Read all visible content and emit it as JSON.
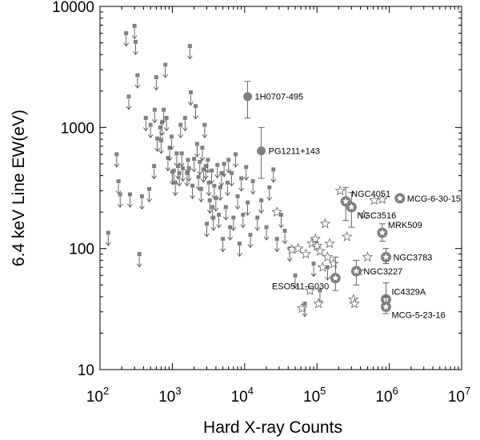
{
  "chart_data": {
    "type": "scatter",
    "title": "",
    "xlabel": "Hard X-ray Counts",
    "ylabel": "6.4 keV Line EW(eV)",
    "xscale": "log",
    "yscale": "log",
    "xlim": [
      100,
      10000000
    ],
    "ylim": [
      10,
      10000
    ],
    "grid": false,
    "x_ticks": [
      {
        "value": 100,
        "base": "10",
        "exp": "2"
      },
      {
        "value": 1000,
        "base": "10",
        "exp": "3"
      },
      {
        "value": 10000,
        "base": "10",
        "exp": "4"
      },
      {
        "value": 100000,
        "base": "10",
        "exp": "5"
      },
      {
        "value": 1000000,
        "base": "10",
        "exp": "6"
      },
      {
        "value": 10000000,
        "base": "10",
        "exp": "7"
      }
    ],
    "y_ticks": [
      {
        "value": 10,
        "label": "10"
      },
      {
        "value": 100,
        "label": "100"
      },
      {
        "value": 1000,
        "label": "1000"
      },
      {
        "value": 10000,
        "label": "10000"
      }
    ],
    "upper_limits": [
      [
        130,
        135
      ],
      [
        170,
        600
      ],
      [
        180,
        360
      ],
      [
        190,
        280
      ],
      [
        230,
        6000
      ],
      [
        250,
        1800
      ],
      [
        260,
        280
      ],
      [
        300,
        6900
      ],
      [
        310,
        5100
      ],
      [
        330,
        2700
      ],
      [
        350,
        90
      ],
      [
        380,
        270
      ],
      [
        430,
        1200
      ],
      [
        480,
        310
      ],
      [
        500,
        1050
      ],
      [
        560,
        480
      ],
      [
        570,
        1400
      ],
      [
        600,
        2600
      ],
      [
        620,
        810
      ],
      [
        680,
        1000
      ],
      [
        700,
        780
      ],
      [
        720,
        1100
      ],
      [
        760,
        1400
      ],
      [
        800,
        3300
      ],
      [
        830,
        1200
      ],
      [
        870,
        560
      ],
      [
        920,
        680
      ],
      [
        980,
        840
      ],
      [
        1000,
        430
      ],
      [
        1050,
        440
      ],
      [
        1100,
        350
      ],
      [
        1150,
        610
      ],
      [
        1200,
        480
      ],
      [
        1250,
        420
      ],
      [
        1300,
        1050
      ],
      [
        1350,
        610
      ],
      [
        1400,
        460
      ],
      [
        1500,
        1200
      ],
      [
        1600,
        420
      ],
      [
        1650,
        540
      ],
      [
        1700,
        460
      ],
      [
        1750,
        4700
      ],
      [
        1800,
        1950
      ],
      [
        1900,
        330
      ],
      [
        2000,
        550
      ],
      [
        2100,
        1500
      ],
      [
        2200,
        730
      ],
      [
        2300,
        390
      ],
      [
        2400,
        520
      ],
      [
        2500,
        310
      ],
      [
        2600,
        680
      ],
      [
        2700,
        450
      ],
      [
        2800,
        1050
      ],
      [
        2900,
        480
      ],
      [
        3000,
        160
      ],
      [
        3100,
        540
      ],
      [
        3200,
        350
      ],
      [
        3300,
        250
      ],
      [
        3500,
        440
      ],
      [
        3600,
        220
      ],
      [
        3700,
        180
      ],
      [
        3800,
        330
      ],
      [
        4000,
        260
      ],
      [
        4200,
        490
      ],
      [
        4400,
        190
      ],
      [
        4600,
        320
      ],
      [
        4800,
        420
      ],
      [
        5000,
        120
      ],
      [
        5200,
        500
      ],
      [
        5500,
        220
      ],
      [
        5800,
        350
      ],
      [
        6000,
        540
      ],
      [
        6300,
        150
      ],
      [
        6600,
        420
      ],
      [
        7000,
        180
      ],
      [
        7500,
        600
      ],
      [
        8000,
        270
      ],
      [
        8500,
        110
      ],
      [
        9000,
        380
      ],
      [
        9500,
        190
      ],
      [
        10500,
        470
      ],
      [
        11000,
        240
      ],
      [
        12000,
        130
      ],
      [
        13000,
        360
      ],
      [
        15000,
        180
      ],
      [
        17000,
        250
      ],
      [
        20000,
        150
      ],
      [
        22000,
        320
      ],
      [
        25000,
        450
      ],
      [
        28000,
        120
      ],
      [
        32000,
        190
      ],
      [
        36000,
        140
      ],
      [
        42000,
        100
      ],
      [
        50000,
        60
      ],
      [
        68000,
        35
      ],
      [
        90000,
        75
      ],
      [
        110000,
        45
      ],
      [
        140000,
        70
      ]
    ],
    "stars": [
      [
        28000,
        200
      ],
      [
        45000,
        98
      ],
      [
        55000,
        100
      ],
      [
        62000,
        32
      ],
      [
        70000,
        90
      ],
      [
        80000,
        45
      ],
      [
        85000,
        110
      ],
      [
        95000,
        120
      ],
      [
        100000,
        105
      ],
      [
        105000,
        35
      ],
      [
        110000,
        95
      ],
      [
        120000,
        70
      ],
      [
        130000,
        160
      ],
      [
        140000,
        85
      ],
      [
        150000,
        110
      ],
      [
        170000,
        75
      ],
      [
        210000,
        300
      ],
      [
        260000,
        125
      ],
      [
        320000,
        38
      ],
      [
        330000,
        35
      ],
      [
        380000,
        65
      ],
      [
        450000,
        190
      ],
      [
        500000,
        85
      ],
      [
        620000,
        250
      ],
      [
        800000,
        255
      ]
    ],
    "grey_points": [
      {
        "x": 11000,
        "y": 1800,
        "err_low": 1200,
        "err_high": 2400,
        "label": "1H0707-495",
        "label_pos": "right"
      },
      {
        "x": 17000,
        "y": 640,
        "err_low": 380,
        "err_high": 1000,
        "label": "PG1211+143",
        "label_pos": "right"
      }
    ],
    "named_stars": [
      {
        "x": 250000,
        "y": 245,
        "err_low": 170,
        "err_high": 320,
        "label": "NGC4051",
        "label_pos": "above-right"
      },
      {
        "x": 300000,
        "y": 220,
        "err_low": 150,
        "err_high": 290,
        "label": "NGC3516",
        "label_pos": "below-right"
      },
      {
        "x": 1400000,
        "y": 260,
        "label": "MCG-6-30-15",
        "label_pos": "right"
      },
      {
        "x": 800000,
        "y": 135,
        "err_low": 115,
        "err_high": 160,
        "label": "MRK509",
        "label_pos": "above-right"
      },
      {
        "x": 900000,
        "y": 85,
        "err_low": 75,
        "err_high": 100,
        "label": "NGC3783",
        "label_pos": "right"
      },
      {
        "x": 350000,
        "y": 65,
        "err_low": 50,
        "err_high": 80,
        "label": "NGC3227",
        "label_pos": "right"
      },
      {
        "x": 180000,
        "y": 57,
        "err_low": 45,
        "err_high": 85,
        "label": "ESO511-G030",
        "label_pos": "left"
      },
      {
        "x": 900000,
        "y": 38,
        "err_low": 33,
        "err_high": 52,
        "label": "IC4329A",
        "label_pos": "above-right"
      },
      {
        "x": 900000,
        "y": 33,
        "err_low": 29,
        "err_high": 40,
        "label": "MCG-5-23-16",
        "label_pos": "below-right"
      }
    ],
    "colors": {
      "marker": "#808080",
      "arrow": "#555555",
      "star_fill": "#ffffff",
      "star_stroke": "#666666",
      "axis": "#000000"
    }
  }
}
